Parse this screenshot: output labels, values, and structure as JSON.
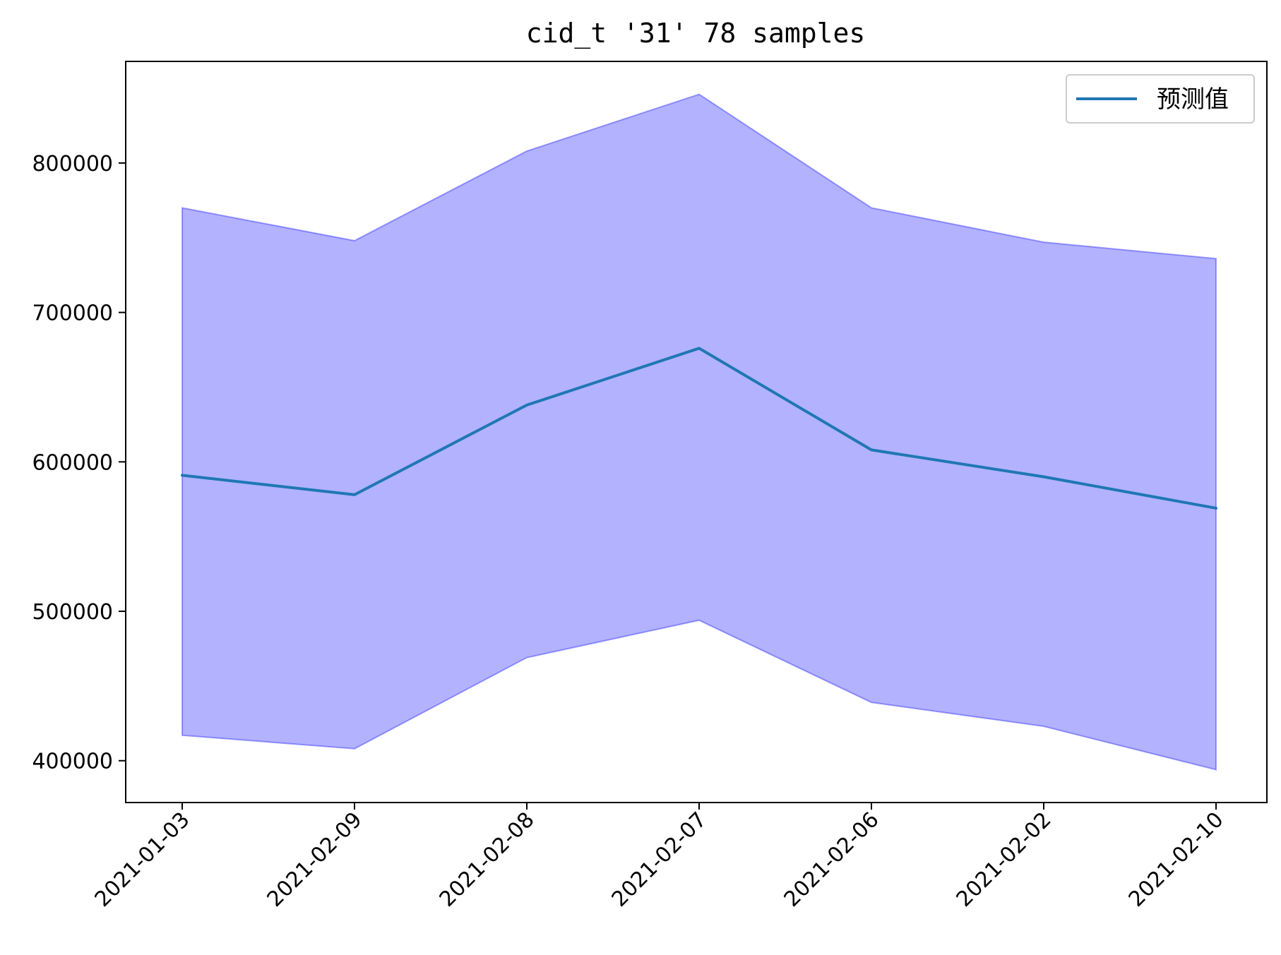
{
  "chart_data": {
    "type": "line",
    "title": "cid_t '31' 78 samples",
    "xlabel": "",
    "ylabel": "",
    "categories": [
      "2021-01-03",
      "2021-02-09",
      "2021-02-08",
      "2021-02-07",
      "2021-02-06",
      "2021-02-02",
      "2021-02-10"
    ],
    "series": [
      {
        "name": "预测值",
        "values": [
          591000,
          578000,
          638000,
          676000,
          608000,
          590000,
          569000
        ],
        "color": "#1f77b4"
      }
    ],
    "band": {
      "lower": [
        417000,
        408000,
        469000,
        494000,
        439000,
        423000,
        394000
      ],
      "upper": [
        770000,
        748000,
        808000,
        846000,
        770000,
        747000,
        736000
      ],
      "fill_color": "#0000ff",
      "fill_opacity": 0.3
    },
    "yticks": [
      400000,
      500000,
      600000,
      700000,
      800000
    ],
    "ylim": [
      372000,
      868000
    ],
    "grid": false,
    "legend": "upper-right"
  }
}
